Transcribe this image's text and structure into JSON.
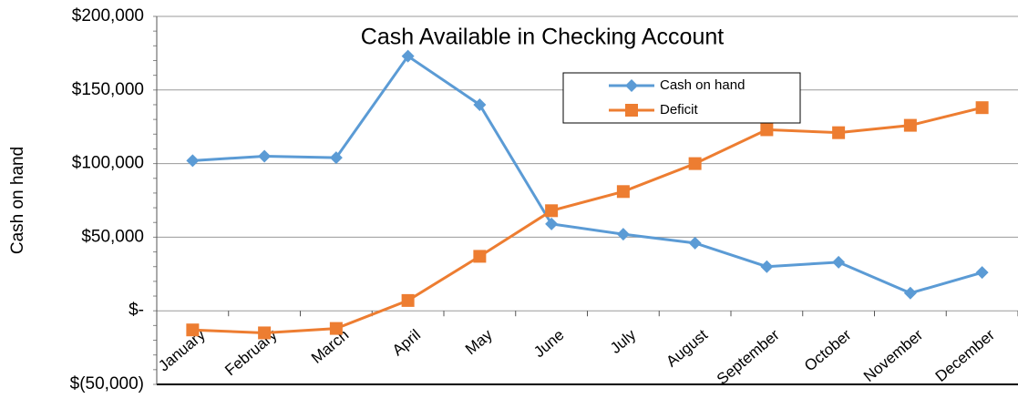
{
  "chart_data": {
    "type": "line",
    "title": "Cash Available in Checking Account",
    "y_label": "Cash on hand",
    "categories": [
      "January",
      "February",
      "March",
      "April",
      "May",
      "June",
      "July",
      "August",
      "September",
      "October",
      "November",
      "December"
    ],
    "series": [
      {
        "name": "Cash on hand",
        "color": "#5b9bd5",
        "marker": "diamond",
        "values": [
          102000,
          105000,
          104000,
          173000,
          140000,
          59000,
          52000,
          46000,
          30000,
          33000,
          12000,
          26000
        ]
      },
      {
        "name": "Deficit",
        "color": "#ed7d31",
        "marker": "square",
        "values": [
          -13000,
          -15000,
          -12000,
          7000,
          37000,
          68000,
          81000,
          100000,
          123000,
          121000,
          126000,
          138000
        ]
      }
    ],
    "ylim": [
      -50000,
      200000
    ],
    "yticks": [
      {
        "value": -50000,
        "label": "$(50,000)"
      },
      {
        "value": 0,
        "label": "$-"
      },
      {
        "value": 50000,
        "label": "$50,000"
      },
      {
        "value": 100000,
        "label": "$100,000"
      },
      {
        "value": 150000,
        "label": "$150,000"
      },
      {
        "value": 200000,
        "label": "$200,000"
      }
    ],
    "grid": true,
    "legend_position": "top right"
  }
}
